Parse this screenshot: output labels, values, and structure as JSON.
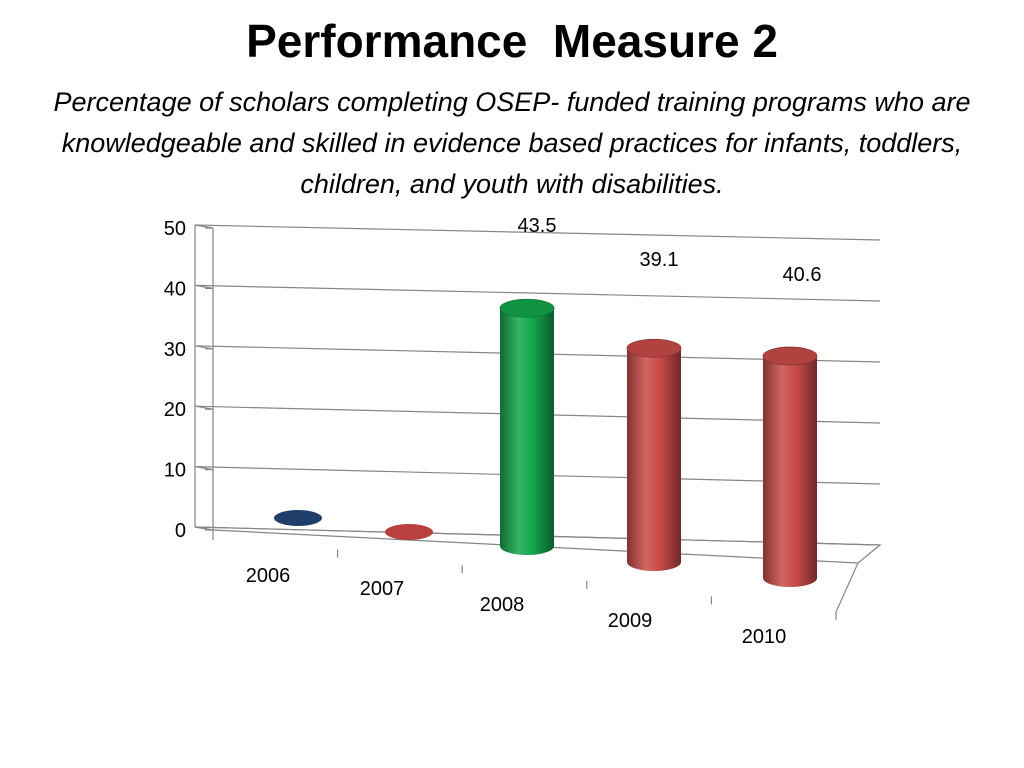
{
  "slide": {
    "title": "Performance  Measure 2",
    "subtitle": "Percentage of scholars completing OSEP- funded training programs who are knowledgeable and skilled in evidence based practices for infants, toddlers, children, and youth with disabilities."
  },
  "chart_data": {
    "type": "bar",
    "title": "",
    "xlabel": "",
    "ylabel": "",
    "categories": [
      "2006",
      "2007",
      "2008",
      "2009",
      "2010"
    ],
    "values": [
      0,
      0,
      43.5,
      39.1,
      40.6
    ],
    "data_labels": [
      "",
      "",
      "43.5",
      "39.1",
      "40.6"
    ],
    "yticks": [
      "0",
      "10",
      "20",
      "30",
      "40",
      "50"
    ],
    "ylim": [
      0,
      50
    ],
    "grid": true,
    "legend": "none",
    "three_d": true,
    "colors": [
      "#1F3F6A",
      "#B9403E",
      "#12A84A",
      "#C94B48",
      "#C94B48"
    ]
  }
}
